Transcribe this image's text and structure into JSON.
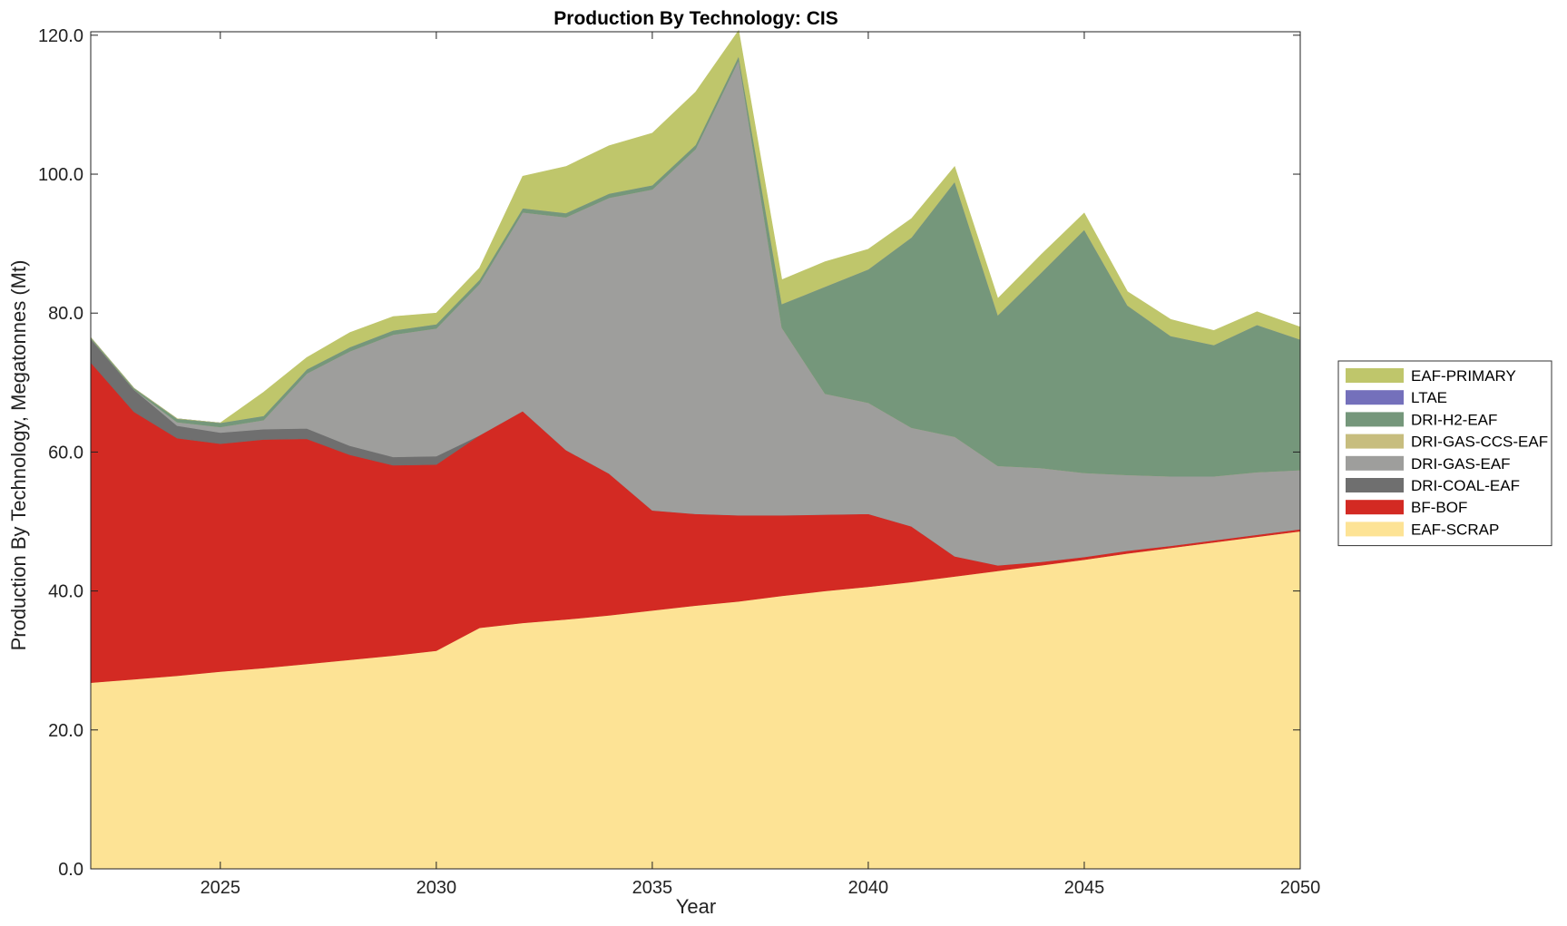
{
  "chart_data": {
    "type": "area",
    "stacked": true,
    "title": "Production By Technology: CIS",
    "xlabel": "Year",
    "ylabel": "Production By Technology, Megatonnes (Mt)",
    "xlim": [
      2022,
      2050
    ],
    "ylim": [
      0,
      120.5
    ],
    "x_ticks": [
      2025,
      2030,
      2035,
      2040,
      2045,
      2050
    ],
    "x_tick_labels": [
      "2025",
      "2030",
      "2035",
      "2040",
      "2045",
      "2050"
    ],
    "y_ticks": [
      0,
      20,
      40,
      60,
      80,
      100,
      120
    ],
    "y_tick_labels": [
      "0.0",
      "20.0",
      "40.0",
      "60.0",
      "80.0",
      "100.0",
      "120.0"
    ],
    "legend_position": "outside-right",
    "x": [
      2022,
      2023,
      2024,
      2025,
      2026,
      2027,
      2028,
      2029,
      2030,
      2031,
      2032,
      2033,
      2034,
      2035,
      2036,
      2037,
      2038,
      2039,
      2040,
      2041,
      2042,
      2043,
      2044,
      2045,
      2046,
      2047,
      2048,
      2049,
      2050
    ],
    "series": [
      {
        "name": "EAF-SCRAP",
        "color": "#FDE395",
        "values": [
          26.8,
          27.3,
          27.8,
          28.4,
          28.9,
          29.5,
          30.1,
          30.7,
          31.4,
          34.7,
          35.4,
          35.9,
          36.5,
          37.2,
          37.9,
          38.5,
          39.3,
          40.0,
          40.6,
          41.3,
          42.1,
          42.9,
          43.7,
          44.5,
          45.4,
          46.2,
          47.0,
          47.8,
          48.6
        ]
      },
      {
        "name": "BF-BOF",
        "color": "#D32A23",
        "values": [
          46.1,
          38.5,
          34.2,
          32.8,
          32.9,
          32.4,
          29.5,
          27.4,
          26.8,
          27.7,
          30.5,
          24.4,
          20.4,
          14.4,
          13.2,
          12.4,
          11.6,
          11.0,
          10.5,
          8.0,
          2.9,
          0.8,
          0.5,
          0.4,
          0.4,
          0.3,
          0.3,
          0.3,
          0.3
        ]
      },
      {
        "name": "DRI-COAL-EAF",
        "color": "#6F6F6F",
        "values": [
          3.4,
          3.2,
          1.8,
          1.6,
          1.5,
          1.5,
          1.3,
          1.2,
          1.2,
          0.0,
          0.0,
          0.0,
          0.0,
          0.0,
          0.0,
          0.0,
          0.0,
          0.0,
          0.0,
          0.0,
          0.0,
          0.0,
          0.0,
          0.0,
          0.0,
          0.0,
          0.0,
          0.0,
          0.0
        ]
      },
      {
        "name": "DRI-GAS-EAF",
        "color": "#9E9E9C",
        "values": [
          0.0,
          0.0,
          0.5,
          0.8,
          1.3,
          7.9,
          13.6,
          17.6,
          18.4,
          21.8,
          28.6,
          33.5,
          39.7,
          46.2,
          52.5,
          65.5,
          27.0,
          17.4,
          16.0,
          14.2,
          17.2,
          14.3,
          13.5,
          12.1,
          10.9,
          10.0,
          9.2,
          9.0,
          8.5
        ]
      },
      {
        "name": "DRI-GAS-CCS-EAF",
        "color": "#C7BD7E",
        "values": [
          0.0,
          0.0,
          0.0,
          0.0,
          0.0,
          0.0,
          0.0,
          0.0,
          0.0,
          0.0,
          0.0,
          0.0,
          0.0,
          0.0,
          0.0,
          0.0,
          0.0,
          0.0,
          0.0,
          0.0,
          0.0,
          0.0,
          0.0,
          0.0,
          0.0,
          0.0,
          0.0,
          0.0,
          0.0
        ]
      },
      {
        "name": "DRI-H2-EAF",
        "color": "#75977B",
        "values": [
          0.2,
          0.2,
          0.5,
          0.6,
          0.6,
          0.6,
          0.6,
          0.6,
          0.6,
          0.6,
          0.6,
          0.6,
          0.6,
          0.6,
          0.6,
          0.6,
          3.4,
          15.4,
          19.2,
          27.4,
          36.7,
          21.7,
          28.1,
          35.0,
          24.4,
          20.2,
          18.9,
          21.2,
          18.8
        ]
      },
      {
        "name": "LTAE",
        "color": "#7470BB",
        "values": [
          0,
          0,
          0,
          0,
          0,
          0,
          0,
          0,
          0,
          0,
          0,
          0,
          0,
          0,
          0,
          0,
          0,
          0,
          0,
          0,
          0,
          0,
          0,
          0,
          0,
          0,
          0,
          0,
          0
        ]
      },
      {
        "name": "EAF-PRIMARY",
        "color": "#BFC66B",
        "values": [
          0.0,
          0.0,
          0.0,
          0.0,
          3.4,
          1.7,
          2.1,
          2.0,
          1.6,
          1.7,
          4.6,
          6.7,
          6.9,
          7.5,
          7.6,
          3.7,
          3.5,
          3.6,
          2.9,
          2.7,
          2.2,
          2.4,
          2.6,
          2.4,
          2.0,
          2.4,
          2.1,
          1.9,
          1.8
        ]
      }
    ],
    "legend": [
      "EAF-PRIMARY",
      "LTAE",
      "DRI-H2-EAF",
      "DRI-GAS-CCS-EAF",
      "DRI-GAS-EAF",
      "DRI-COAL-EAF",
      "BF-BOF",
      "EAF-SCRAP"
    ]
  }
}
